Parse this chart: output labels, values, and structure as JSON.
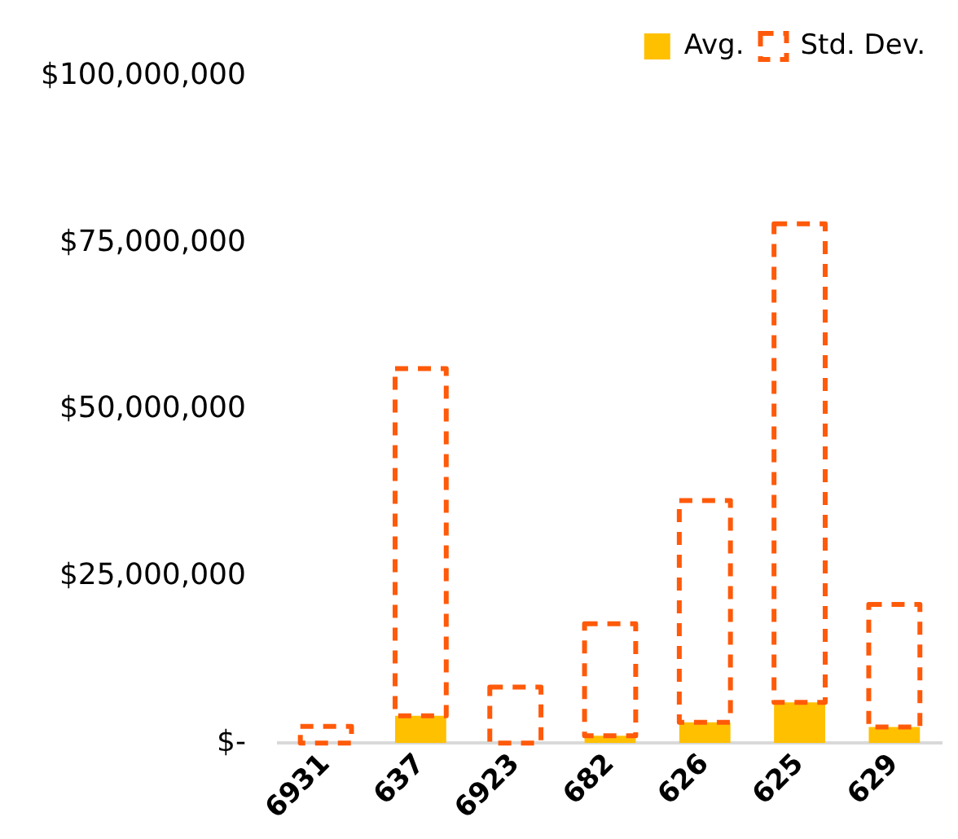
{
  "chart_data": {
    "type": "bar",
    "stacked": true,
    "categories": [
      "6931",
      "637",
      "6923",
      "682",
      "626",
      "625",
      "629"
    ],
    "series": [
      {
        "name": "Avg.",
        "color": "#ffc000",
        "values": [
          null,
          4100000,
          null,
          1100000,
          3100000,
          6100000,
          2400000
        ]
      },
      {
        "name": "Std. Dev.",
        "color": "#ff5a0a",
        "line_style": "dashed",
        "values": [
          2500000,
          52100000,
          8400000,
          16800000,
          33300000,
          71800000,
          18400000
        ]
      }
    ],
    "ylim": [
      0,
      100000000
    ],
    "yticks": [
      {
        "value": 0,
        "label": "$-"
      },
      {
        "value": 25000000,
        "label": "$25,000,000"
      },
      {
        "value": 50000000,
        "label": "$50,000,000"
      },
      {
        "value": 75000000,
        "label": "$75,000,000"
      },
      {
        "value": 100000000,
        "label": "$100,000,000"
      }
    ],
    "grid": false,
    "legend": "top right"
  }
}
